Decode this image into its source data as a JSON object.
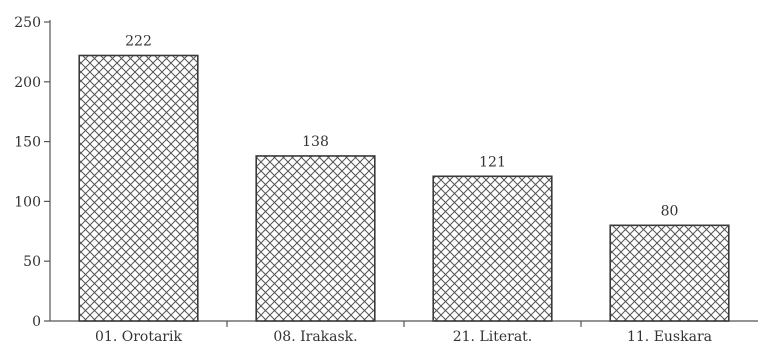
{
  "chart_data": {
    "type": "bar",
    "title": "",
    "xlabel": "",
    "ylabel": "",
    "categories": [
      "01. Orotarik",
      "08. Irakask.",
      "21. Literat.",
      "11. Euskara"
    ],
    "values": [
      222,
      138,
      121,
      80
    ],
    "data_labels": [
      "222",
      "138",
      "121",
      "80"
    ],
    "ylim": [
      0,
      250
    ],
    "yticks": [
      0,
      50,
      100,
      150,
      200,
      250
    ],
    "ytick_labels": [
      "0",
      "50",
      "100",
      "150",
      "200",
      "250"
    ],
    "grid": false,
    "bar_fill": "crosshatch",
    "colors": {
      "bar_stroke": "#3a3a3a",
      "hatch": "#555555",
      "axis": "#555555"
    }
  }
}
